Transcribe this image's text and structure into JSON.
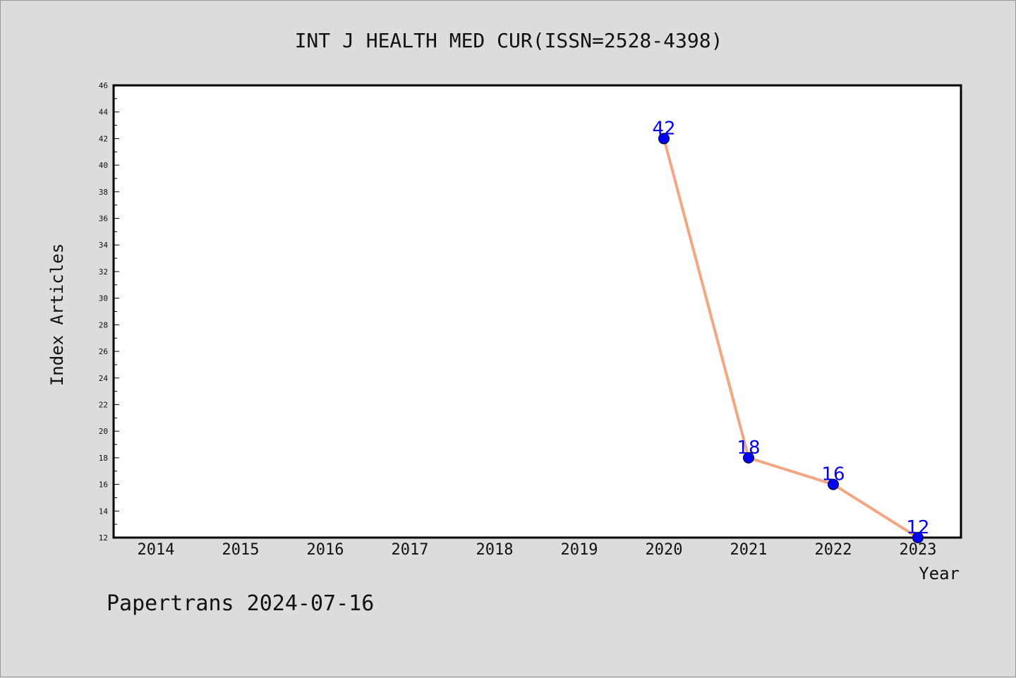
{
  "chart_data": {
    "type": "line",
    "title": "INT J HEALTH MED CUR(ISSN=2528-4398)",
    "xlabel": "Year",
    "ylabel": "Index Articles",
    "categories": [
      "2014",
      "2015",
      "2016",
      "2017",
      "2018",
      "2019",
      "2020",
      "2021",
      "2022",
      "2023"
    ],
    "series": [
      {
        "x": [
          "2020",
          "2021",
          "2022",
          "2023"
        ],
        "values": [
          42,
          18,
          16,
          12
        ],
        "line_color": "#f4a582",
        "marker_color": "#0000ff"
      }
    ],
    "ylim": [
      12,
      46
    ],
    "yticks": [
      12,
      14,
      16,
      18,
      20,
      22,
      24,
      26,
      28,
      30,
      32,
      34,
      36,
      38,
      40,
      42,
      44,
      46
    ],
    "grid": false,
    "label_color": "#0000ee"
  },
  "footer": {
    "text": "Papertrans 2024-07-16"
  }
}
